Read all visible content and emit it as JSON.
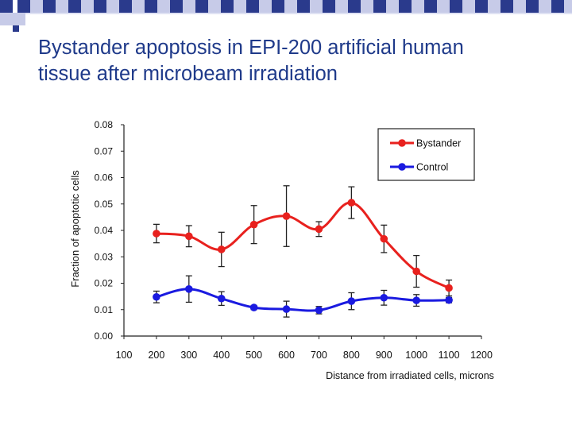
{
  "slide": {
    "title_line1": "Bystander apoptosis in EPI-200 artificial human",
    "title_line2": "tissue after microbeam irradiation",
    "accent_color": "#1f3a8a",
    "decoration_color": "#2a3a8c"
  },
  "chart_data": {
    "type": "line",
    "title": "",
    "xlabel": "Distance from irradiated cells, microns",
    "ylabel": "Fraction of apoptotic cells",
    "xlim": [
      100,
      1200
    ],
    "ylim": [
      0,
      0.08
    ],
    "x_ticks": [
      "100",
      "200",
      "300",
      "400",
      "500",
      "600",
      "700",
      "800",
      "900",
      "1000",
      "1100",
      "1200"
    ],
    "y_ticks": [
      "0.00",
      "0.01",
      "0.02",
      "0.03",
      "0.04",
      "0.05",
      "0.06",
      "0.07",
      "0.08"
    ],
    "x_tick_values": [
      100,
      200,
      300,
      400,
      500,
      600,
      700,
      800,
      900,
      1000,
      1100,
      1200
    ],
    "y_tick_values": [
      0,
      0.01,
      0.02,
      0.03,
      0.04,
      0.05,
      0.06,
      0.07,
      0.08
    ],
    "grid": false,
    "legend_position": "top-right",
    "series": [
      {
        "name": "Bystander",
        "color": "#e8211e",
        "x": [
          200,
          300,
          400,
          500,
          600,
          700,
          800,
          900,
          1000,
          1100
        ],
        "values": [
          0.0388,
          0.0378,
          0.0328,
          0.0422,
          0.0454,
          0.0405,
          0.0505,
          0.0368,
          0.0245,
          0.0182
        ],
        "err": [
          0.0035,
          0.004,
          0.0065,
          0.0072,
          0.0115,
          0.0028,
          0.006,
          0.0052,
          0.006,
          0.003
        ]
      },
      {
        "name": "Control",
        "color": "#1a1ae0",
        "x": [
          200,
          300,
          400,
          500,
          600,
          700,
          800,
          900,
          1000,
          1100
        ],
        "values": [
          0.0148,
          0.0178,
          0.0142,
          0.0108,
          0.0102,
          0.0098,
          0.0132,
          0.0145,
          0.0135,
          0.0136
        ],
        "err": [
          0.0022,
          0.005,
          0.0026,
          0.0008,
          0.003,
          0.0014,
          0.0032,
          0.0028,
          0.0022,
          0.001
        ]
      }
    ]
  }
}
